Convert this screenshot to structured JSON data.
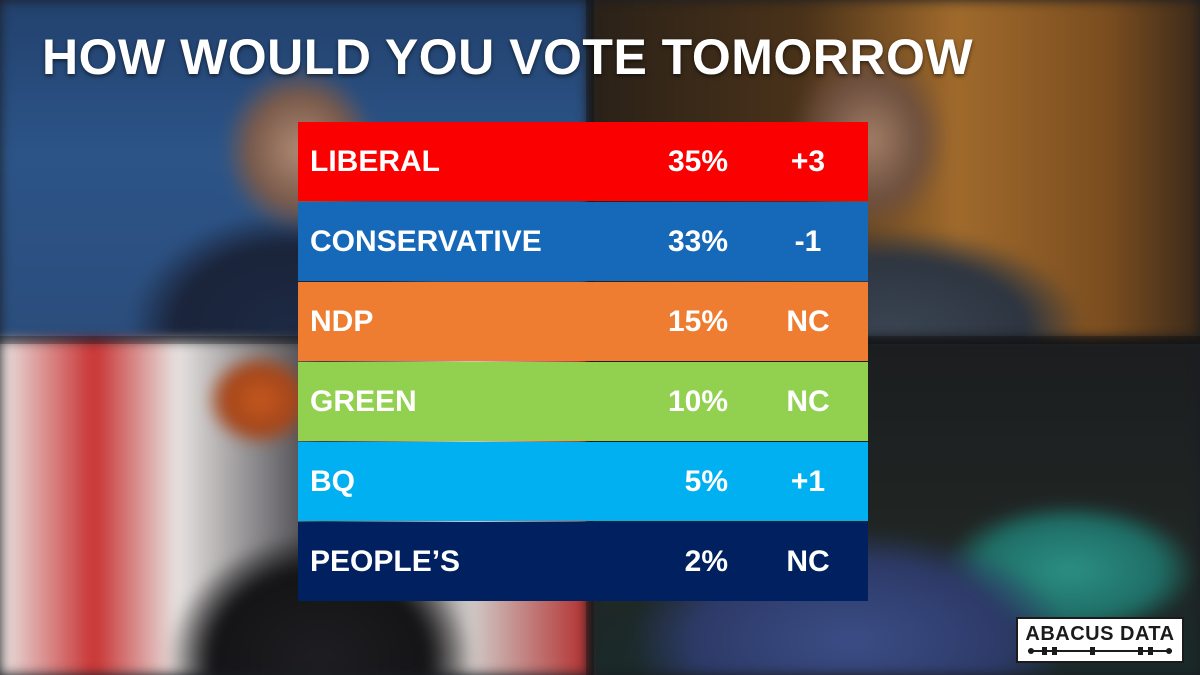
{
  "chart_data": {
    "type": "table",
    "title": "HOW WOULD YOU VOTE TOMORROW",
    "rows": [
      {
        "party": "LIBERAL",
        "share": "35%",
        "change": "+3",
        "value": 35,
        "color": "#fb0000"
      },
      {
        "party": "CONSERVATIVE",
        "share": "33%",
        "change": "-1",
        "value": 33,
        "color": "#1669b9"
      },
      {
        "party": "NDP",
        "share": "15%",
        "change": "NC",
        "value": 15,
        "color": "#ee7d31"
      },
      {
        "party": "GREEN",
        "share": "10%",
        "change": "NC",
        "value": 10,
        "color": "#92d050"
      },
      {
        "party": "BQ",
        "share": "5%",
        "change": "+1",
        "value": 5,
        "color": "#00b0f0"
      },
      {
        "party": "PEOPLE’S",
        "share": "2%",
        "change": "NC",
        "value": 2,
        "color": "#002060"
      }
    ]
  },
  "logo": {
    "text": "ABACUS DATA",
    "icon": "abacus-logo-icon"
  }
}
